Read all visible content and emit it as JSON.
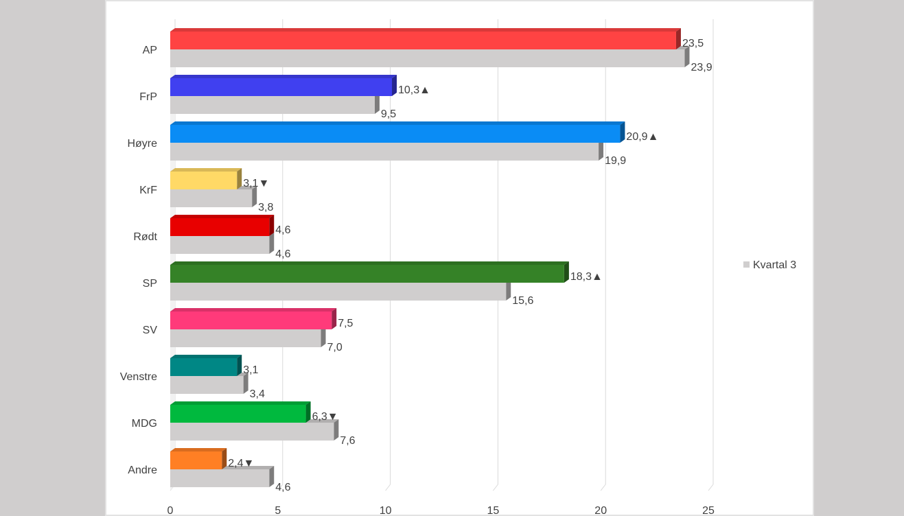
{
  "chart_data": {
    "type": "bar",
    "orientation": "horizontal",
    "categories": [
      "AP",
      "FrP",
      "Høyre",
      "KrF",
      "Rødt",
      "SP",
      "SV",
      "Venstre",
      "MDG",
      "Andre"
    ],
    "series": [
      {
        "name": "",
        "values": [
          23.5,
          10.3,
          20.9,
          3.1,
          4.6,
          18.3,
          7.5,
          3.1,
          6.3,
          2.4
        ],
        "labels": [
          "23,5",
          "10,3▲",
          "20,9▲",
          "3,1▼",
          "4,6",
          "18,3▲",
          "7,5",
          "3,1",
          "6,3▼",
          "2,4▼"
        ],
        "colors": [
          "#ff4343",
          "#4040f0",
          "#0a8cf5",
          "#ffd966",
          "#e80000",
          "#358227",
          "#ff3a7a",
          "#008785",
          "#00b93e",
          "#ff7f24"
        ]
      },
      {
        "name": "Kvartal 3",
        "values": [
          23.9,
          9.5,
          19.9,
          3.8,
          4.6,
          15.6,
          7.0,
          3.4,
          7.6,
          4.6
        ],
        "labels": [
          "23,9",
          "9,5",
          "19,9",
          "3,8",
          "4,6",
          "15,6",
          "7,0",
          "3,4",
          "7,6",
          "4,6"
        ],
        "color": "#d0cece"
      }
    ],
    "xlim": [
      0,
      25
    ],
    "xticks": [
      "0",
      "5",
      "10",
      "15",
      "20",
      "25"
    ],
    "legend": {
      "position": "right",
      "entries": [
        "Kvartal 3"
      ]
    },
    "grid": true
  }
}
